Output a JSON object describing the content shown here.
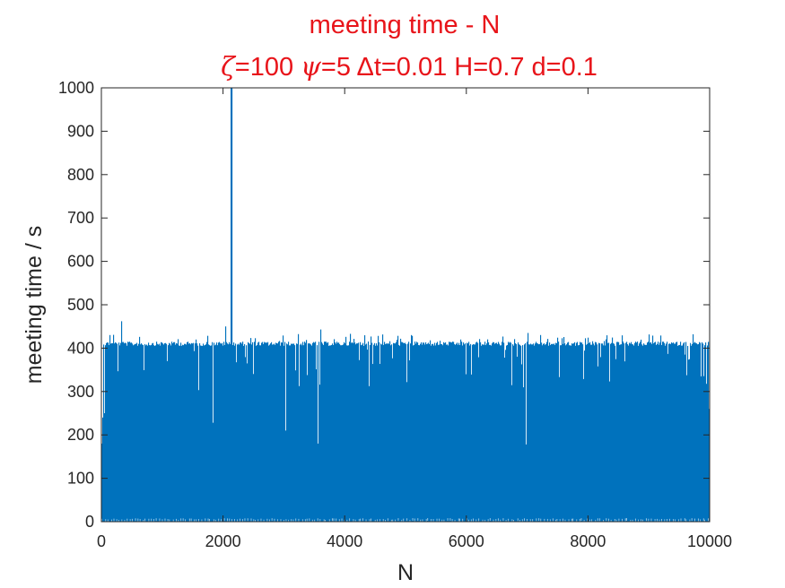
{
  "chart_data": {
    "type": "bar",
    "title": "meeting time - N",
    "subtitle_parts": [
      {
        "text": "ζ",
        "greek": true
      },
      {
        "text": "=100 ",
        "greek": false
      },
      {
        "text": "ψ",
        "greek": true
      },
      {
        "text": "=5 Δt=0.01 H=0.7 d=0.1",
        "greek": false
      }
    ],
    "xlabel": "N",
    "ylabel": "meeting time / s",
    "xlim": [
      0,
      10000
    ],
    "ylim": [
      0,
      1000
    ],
    "xticks": [
      0,
      2000,
      4000,
      6000,
      8000,
      10000
    ],
    "yticks": [
      0,
      100,
      200,
      300,
      400,
      500,
      600,
      700,
      800,
      900,
      1000
    ],
    "grid": false,
    "legend": "none",
    "bar_color": "#0072bd",
    "title_color": "#e8141a",
    "typical_max": 415,
    "n_points": 10000,
    "notable_peaks": [
      {
        "x": 50,
        "y": 250
      },
      {
        "x": 330,
        "y": 462
      },
      {
        "x": 2030,
        "y": 450
      },
      {
        "x": 2130,
        "y": 1000
      },
      {
        "x": 3600,
        "y": 443
      },
      {
        "x": 7000,
        "y": 435
      },
      {
        "x": 9720,
        "y": 432
      },
      {
        "x": 9980,
        "y": 260
      }
    ],
    "notable_dips": [
      {
        "x": 1830,
        "y": 228
      },
      {
        "x": 3020,
        "y": 210
      },
      {
        "x": 3550,
        "y": 180
      },
      {
        "x": 6970,
        "y": 178
      },
      {
        "x": 9850,
        "y": 335
      }
    ]
  }
}
